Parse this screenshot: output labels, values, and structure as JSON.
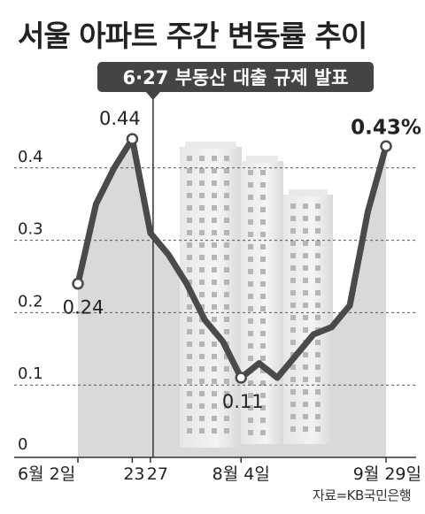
{
  "title": "서울 아파트 주간 변동률 추이",
  "source": "자료=KB국민은행",
  "colors": {
    "line": "#4a4a4a",
    "area": "#d9d9d9",
    "grid": "#555555",
    "banner_bg": "#444444",
    "banner_text": "#ffffff",
    "text": "#222222"
  },
  "chart_data": {
    "type": "line",
    "title": "서울 아파트 주간 변동률 추이",
    "xlabel": "",
    "ylabel": "",
    "ylim": [
      0,
      0.45
    ],
    "y_ticks": [
      "0",
      "0.1",
      "0.2",
      "0.3",
      "0.4"
    ],
    "x_tick_labels": [
      "6월 2일",
      "23",
      "27",
      "8월 4일",
      "9월 29일"
    ],
    "x_tick_index": [
      0,
      3,
      4,
      9,
      17
    ],
    "series": [
      {
        "values": [
          0.24,
          0.35,
          0.4,
          0.44,
          0.31,
          0.28,
          0.24,
          0.19,
          0.16,
          0.11,
          0.13,
          0.11,
          0.14,
          0.17,
          0.18,
          0.21,
          0.34,
          0.43
        ]
      }
    ],
    "data_labels": [
      {
        "index": 0,
        "text": "0.24",
        "bold": false
      },
      {
        "index": 3,
        "text": "0.44",
        "bold": false
      },
      {
        "index": 9,
        "text": "0.11",
        "bold": false
      },
      {
        "index": 17,
        "text": "0.43%",
        "bold": true
      }
    ],
    "annotation": {
      "text": "6·27 부동산 대출 규제 발표",
      "x_index": 4
    },
    "grid": true,
    "legend": "none"
  }
}
